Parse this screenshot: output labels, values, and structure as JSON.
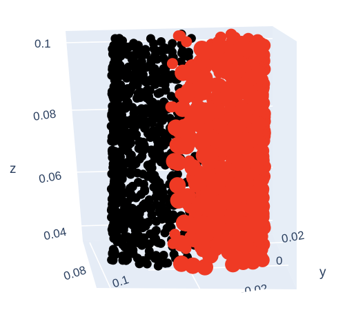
{
  "chart_data": {
    "type": "scatter",
    "subtype": "scatter3d",
    "title": "",
    "axes": {
      "x": {
        "title": "",
        "ticks": [
          "0.08",
          "0.1"
        ],
        "range": [
          0.07,
          0.13
        ]
      },
      "y": {
        "title": "y",
        "ticks": [
          "0",
          "0.02"
        ],
        "range": [
          -0.03,
          0.03
        ]
      },
      "z": {
        "title": "z",
        "ticks": [
          "0.04",
          "0.06",
          "0.08",
          "0.1"
        ],
        "range": [
          0.025,
          0.1
        ]
      }
    },
    "scene_background": "#e5ecf6",
    "grid": true,
    "legend": "none",
    "series": [
      {
        "marker_color": "#000000",
        "shape": "cylinder",
        "x_center": 0.1,
        "y_center": 0.0,
        "radius": 0.025,
        "z_range": [
          0.03,
          0.1
        ],
        "side": "theta > 0"
      },
      {
        "marker_color": "#ef3a24",
        "shape": "cylinder",
        "x_center": 0.1,
        "y_center": 0.0,
        "radius": 0.025,
        "z_range": [
          0.03,
          0.1
        ],
        "side": "theta < 0"
      }
    ],
    "tick_text": {
      "z1": "0.1",
      "z2": "0.08",
      "z3": "0.06",
      "z4": "0.04",
      "x1": "0.08",
      "x2": "0.1",
      "y1": "0.02",
      "y2": "0",
      "y3": "-0.02",
      "z_title": "z",
      "y_title": "y"
    }
  }
}
